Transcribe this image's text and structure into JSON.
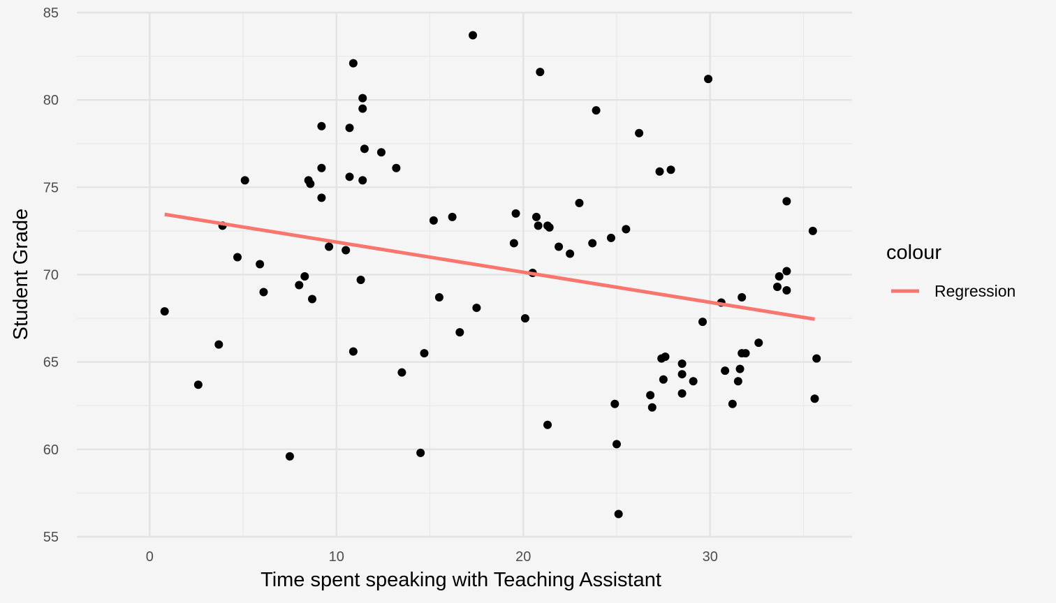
{
  "chart_data": {
    "type": "scatter",
    "title": "",
    "xlabel": "Time spent speaking with Teaching Assistant",
    "ylabel": "Student Grade",
    "xlim": [
      -3.9,
      37.6
    ],
    "ylim": [
      55,
      85
    ],
    "x_ticks": [
      0,
      10,
      20,
      30
    ],
    "y_ticks": [
      55,
      60,
      65,
      70,
      75,
      80,
      85
    ],
    "grid": true,
    "legend": {
      "title": "colour",
      "position": "right",
      "entries": [
        {
          "label": "Regression",
          "color": "#f8766d"
        }
      ]
    },
    "series": [
      {
        "type": "scatter",
        "color": "#000000",
        "points": [
          [
            0.8,
            67.9
          ],
          [
            2.6,
            63.7
          ],
          [
            3.7,
            66.0
          ],
          [
            3.9,
            72.8
          ],
          [
            4.7,
            71.0
          ],
          [
            5.1,
            75.4
          ],
          [
            5.9,
            70.6
          ],
          [
            6.1,
            69.0
          ],
          [
            7.5,
            59.6
          ],
          [
            8.0,
            69.4
          ],
          [
            8.3,
            69.9
          ],
          [
            8.5,
            75.4
          ],
          [
            8.6,
            75.2
          ],
          [
            8.7,
            68.6
          ],
          [
            9.2,
            78.5
          ],
          [
            9.2,
            76.1
          ],
          [
            9.2,
            74.4
          ],
          [
            9.6,
            71.6
          ],
          [
            10.5,
            71.4
          ],
          [
            10.7,
            78.4
          ],
          [
            10.7,
            75.6
          ],
          [
            10.9,
            65.6
          ],
          [
            10.9,
            82.1
          ],
          [
            11.3,
            69.7
          ],
          [
            11.4,
            79.5
          ],
          [
            11.4,
            80.1
          ],
          [
            11.4,
            75.4
          ],
          [
            11.5,
            77.2
          ],
          [
            12.4,
            77.0
          ],
          [
            13.2,
            76.1
          ],
          [
            13.5,
            64.4
          ],
          [
            14.5,
            59.8
          ],
          [
            14.7,
            65.5
          ],
          [
            15.2,
            73.1
          ],
          [
            15.5,
            68.7
          ],
          [
            16.2,
            73.3
          ],
          [
            16.6,
            66.7
          ],
          [
            17.3,
            83.7
          ],
          [
            17.5,
            68.1
          ],
          [
            19.5,
            71.8
          ],
          [
            19.6,
            73.5
          ],
          [
            20.1,
            67.5
          ],
          [
            20.5,
            70.1
          ],
          [
            20.7,
            73.3
          ],
          [
            20.8,
            72.8
          ],
          [
            20.9,
            81.6
          ],
          [
            21.3,
            72.8
          ],
          [
            21.4,
            72.7
          ],
          [
            21.3,
            61.4
          ],
          [
            21.9,
            71.6
          ],
          [
            22.5,
            71.2
          ],
          [
            23.0,
            74.1
          ],
          [
            23.7,
            71.8
          ],
          [
            23.9,
            79.4
          ],
          [
            24.7,
            72.1
          ],
          [
            24.9,
            62.6
          ],
          [
            25.0,
            60.3
          ],
          [
            25.1,
            56.3
          ],
          [
            25.5,
            72.6
          ],
          [
            26.2,
            78.1
          ],
          [
            26.8,
            63.1
          ],
          [
            26.9,
            62.4
          ],
          [
            27.3,
            75.9
          ],
          [
            27.4,
            65.2
          ],
          [
            27.5,
            64.0
          ],
          [
            27.6,
            65.3
          ],
          [
            27.9,
            76.0
          ],
          [
            28.5,
            64.9
          ],
          [
            28.5,
            64.3
          ],
          [
            28.5,
            63.2
          ],
          [
            29.1,
            63.9
          ],
          [
            29.6,
            67.3
          ],
          [
            29.9,
            81.2
          ],
          [
            30.6,
            68.4
          ],
          [
            30.8,
            64.5
          ],
          [
            31.2,
            62.6
          ],
          [
            31.5,
            63.9
          ],
          [
            31.6,
            64.6
          ],
          [
            31.7,
            68.7
          ],
          [
            31.7,
            65.5
          ],
          [
            31.9,
            65.5
          ],
          [
            32.6,
            66.1
          ],
          [
            33.6,
            69.3
          ],
          [
            33.7,
            69.9
          ],
          [
            34.1,
            70.2
          ],
          [
            34.1,
            69.1
          ],
          [
            34.1,
            74.2
          ],
          [
            35.5,
            72.5
          ],
          [
            35.6,
            62.9
          ],
          [
            35.7,
            65.2
          ]
        ]
      },
      {
        "name": "Regression",
        "type": "line",
        "color": "#f8766d",
        "points": [
          [
            0.8,
            73.45
          ],
          [
            35.6,
            67.45
          ]
        ]
      }
    ]
  }
}
